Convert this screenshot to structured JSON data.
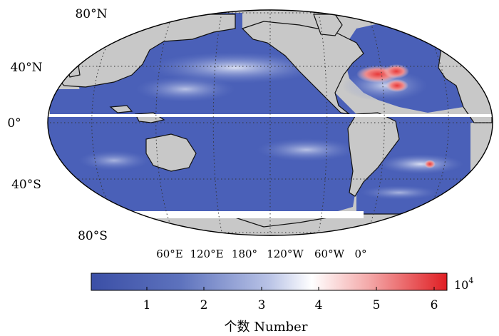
{
  "map": {
    "lat_labels": [
      "80°N",
      "40°N",
      "0°",
      "40°S",
      "80°S"
    ],
    "lon_labels": [
      "60°E",
      "120°E",
      "180°",
      "120°W",
      "60°W",
      "0°"
    ]
  },
  "colorbar": {
    "ticks": [
      "1",
      "2",
      "3",
      "4",
      "5",
      "6"
    ],
    "exponent_base": "10",
    "exponent_power": "4",
    "label": "个数 Number",
    "colors": {
      "low": "#3b4fa6",
      "mid": "#ffffff",
      "high": "#e01e23"
    }
  },
  "colors": {
    "land": "#c8c8c8",
    "ocean_base": "#4a60b8",
    "hotspot": "#e83a3a"
  }
}
